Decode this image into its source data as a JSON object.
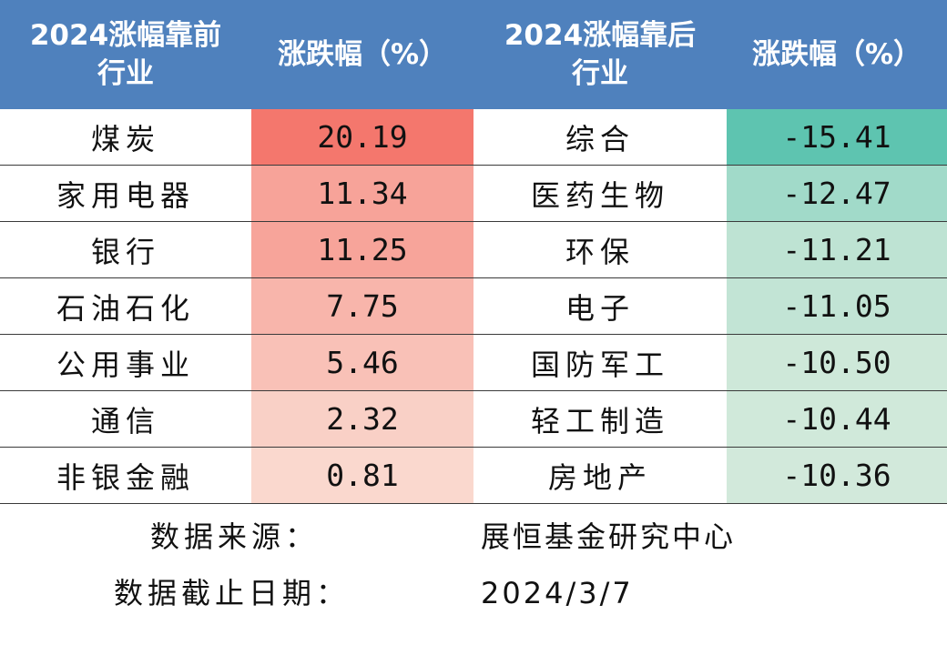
{
  "chart_data": {
    "type": "table",
    "header_bg": "#4f81bd",
    "gain_color": "#f4776d",
    "loss_color": "#5ec4b0",
    "headers": [
      [
        "2024涨幅靠前",
        "行业"
      ],
      [
        "涨跌幅（%）"
      ],
      [
        "2024涨幅靠后",
        "行业"
      ],
      [
        "涨跌幅（%）"
      ]
    ],
    "top": [
      {
        "industry": "煤炭",
        "change": 20.19
      },
      {
        "industry": "家用电器",
        "change": 11.34
      },
      {
        "industry": "银行",
        "change": 11.25
      },
      {
        "industry": "石油石化",
        "change": 7.75
      },
      {
        "industry": "公用事业",
        "change": 5.46
      },
      {
        "industry": "通信",
        "change": 2.32
      },
      {
        "industry": "非银金融",
        "change": 0.81
      }
    ],
    "bottom": [
      {
        "industry": "综合",
        "change": -15.41
      },
      {
        "industry": "医药生物",
        "change": -12.47
      },
      {
        "industry": "环保",
        "change": -11.21
      },
      {
        "industry": "电子",
        "change": -11.05
      },
      {
        "industry": "国防军工",
        "change": -10.5
      },
      {
        "industry": "轻工制造",
        "change": -10.44
      },
      {
        "industry": "房地产",
        "change": -10.36
      }
    ]
  },
  "footer": {
    "source_label": "数据来源：",
    "source_value": "展恒基金研究中心",
    "date_label": "数据截止日期：",
    "date_value": "2024/3/7"
  }
}
